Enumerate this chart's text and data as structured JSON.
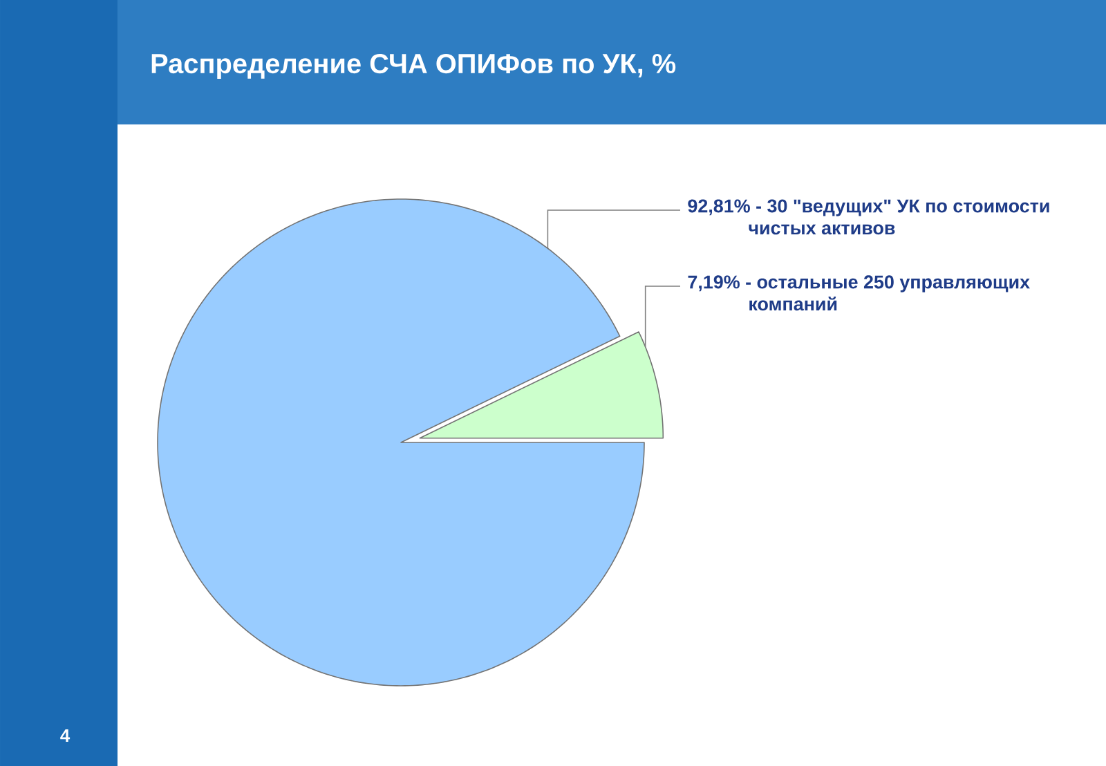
{
  "chart_data": {
    "type": "pie",
    "title": "Распределение СЧА ОПИФов по УК, %",
    "categories": [
      "92,81% - 30 \"ведущих\" УК по стоимости чистых активов",
      "7,19% - остальные 250 управляющих компаний"
    ],
    "values": [
      92.81,
      7.19
    ],
    "colors": [
      "#99ccff",
      "#ccffcc"
    ],
    "annotations": [
      "4"
    ]
  }
}
